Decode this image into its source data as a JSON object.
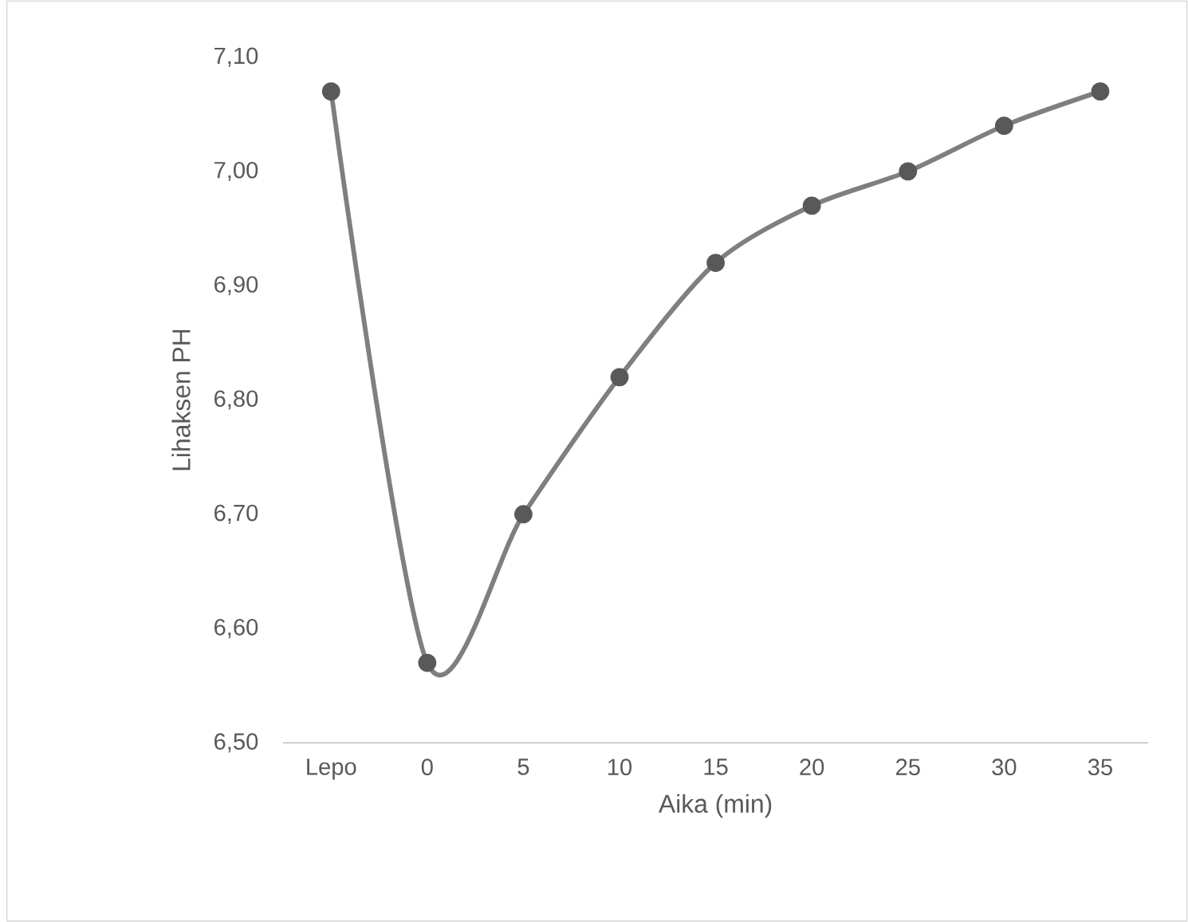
{
  "chart_data": {
    "type": "line",
    "xlabel": "Aika (min)",
    "ylabel": "Lihaksen PH",
    "categories": [
      "Lepo",
      "0",
      "5",
      "10",
      "15",
      "20",
      "25",
      "30",
      "35"
    ],
    "series": [
      {
        "color": "#7f7f7f",
        "values": [
          7.07,
          6.57,
          6.7,
          6.82,
          6.92,
          6.97,
          7.0,
          7.04,
          7.07
        ]
      }
    ],
    "ylim": [
      6.5,
      7.1
    ],
    "yticks": [
      {
        "value": 6.5,
        "label": "6,50"
      },
      {
        "value": 6.6,
        "label": "6,60"
      },
      {
        "value": 6.7,
        "label": "6,70"
      },
      {
        "value": 6.8,
        "label": "6,80"
      },
      {
        "value": 6.9,
        "label": "6,90"
      },
      {
        "value": 7.0,
        "label": "7,00"
      },
      {
        "value": 7.1,
        "label": "7,10"
      }
    ],
    "marker": "circle",
    "line_style": "solid"
  }
}
